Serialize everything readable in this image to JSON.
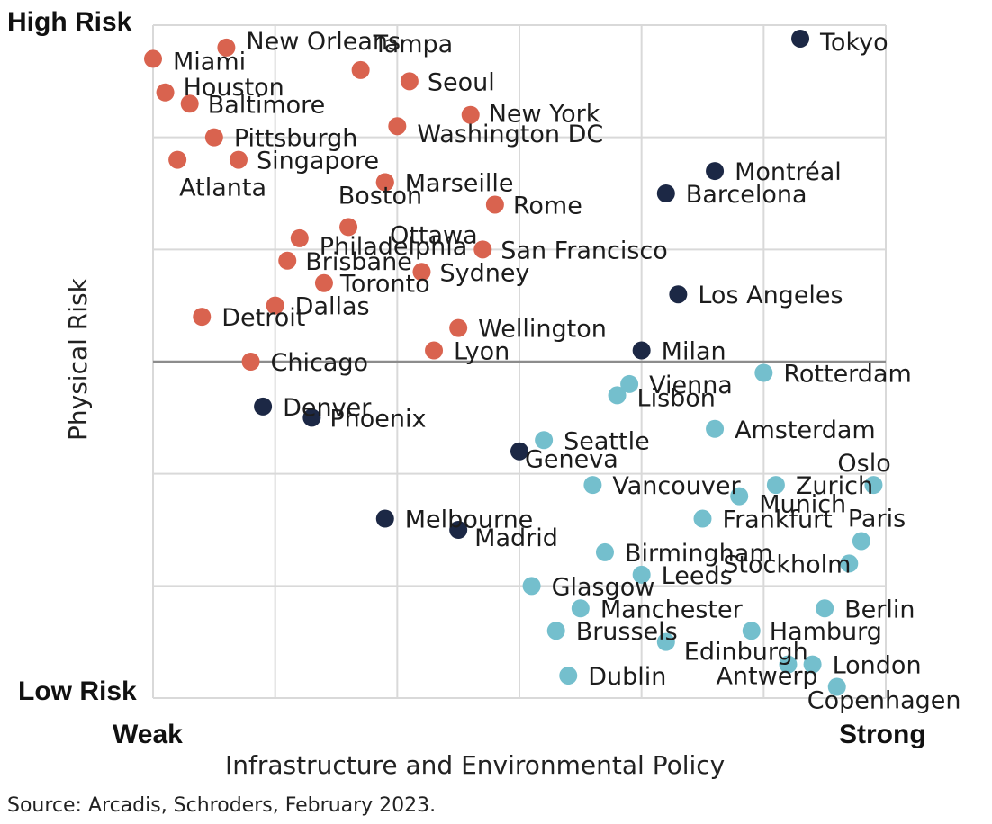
{
  "chart_data": {
    "type": "scatter",
    "xlabel": "Infrastructure and  Environmental Policy",
    "ylabel": "Physical Risk",
    "x_low_label": "Weak",
    "x_high_label": "Strong",
    "y_high_label": "High Risk",
    "y_low_label": "Low Risk",
    "xlim": [
      0,
      6
    ],
    "ylim": [
      0,
      6
    ],
    "grid": true,
    "source": "Source: Arcadis, Schroders, February 2023.",
    "colors": {
      "red": "#d9634f",
      "navy": "#1c2845",
      "teal": "#74bfcd"
    },
    "points": [
      {
        "name": "Tokyo",
        "x": 5.3,
        "y": 5.88,
        "color": "navy"
      },
      {
        "name": "Montréal",
        "x": 4.6,
        "y": 4.7,
        "color": "navy"
      },
      {
        "name": "Barcelona",
        "x": 4.2,
        "y": 4.5,
        "color": "navy"
      },
      {
        "name": "Los Angeles",
        "x": 4.3,
        "y": 3.6,
        "color": "navy"
      },
      {
        "name": "Milan",
        "x": 4.0,
        "y": 3.1,
        "color": "navy"
      },
      {
        "name": "Denver",
        "x": 0.9,
        "y": 2.6,
        "color": "navy"
      },
      {
        "name": "Phoenix",
        "x": 1.3,
        "y": 2.5,
        "color": "navy"
      },
      {
        "name": "Geneva",
        "x": 3.0,
        "y": 2.2,
        "color": "navy"
      },
      {
        "name": "Melbourne",
        "x": 1.9,
        "y": 1.6,
        "color": "navy"
      },
      {
        "name": "Madrid",
        "x": 2.5,
        "y": 1.5,
        "color": "navy"
      },
      {
        "name": "Miami",
        "x": 0.0,
        "y": 5.7,
        "color": "red"
      },
      {
        "name": "New Orleans",
        "x": 0.6,
        "y": 5.8,
        "color": "red"
      },
      {
        "name": "Tampa",
        "x": 1.7,
        "y": 5.6,
        "color": "red"
      },
      {
        "name": "Houston",
        "x": 0.1,
        "y": 5.4,
        "color": "red"
      },
      {
        "name": "Seoul",
        "x": 2.1,
        "y": 5.5,
        "color": "red"
      },
      {
        "name": "Baltimore",
        "x": 0.3,
        "y": 5.3,
        "color": "red"
      },
      {
        "name": "New York",
        "x": 2.6,
        "y": 5.2,
        "color": "red"
      },
      {
        "name": "Washington DC",
        "x": 2.0,
        "y": 5.1,
        "color": "red"
      },
      {
        "name": "Pittsburgh",
        "x": 0.5,
        "y": 5.0,
        "color": "red"
      },
      {
        "name": "Singapore",
        "x": 0.7,
        "y": 4.8,
        "color": "red"
      },
      {
        "name": "Atlanta",
        "x": 0.2,
        "y": 4.8,
        "color": "red"
      },
      {
        "name": "Marseille",
        "x": 1.9,
        "y": 4.6,
        "color": "red"
      },
      {
        "name": "Boston",
        "x": 1.9,
        "y": 4.6,
        "color": "red"
      },
      {
        "name": "Rome",
        "x": 2.8,
        "y": 4.4,
        "color": "red"
      },
      {
        "name": "Ottawa",
        "x": 1.6,
        "y": 4.2,
        "color": "red"
      },
      {
        "name": "Philadelphia",
        "x": 1.2,
        "y": 4.1,
        "color": "red"
      },
      {
        "name": "San Francisco",
        "x": 2.7,
        "y": 4.0,
        "color": "red"
      },
      {
        "name": "Brisbane",
        "x": 1.1,
        "y": 3.9,
        "color": "red"
      },
      {
        "name": "Sydney",
        "x": 2.2,
        "y": 3.8,
        "color": "red"
      },
      {
        "name": "Toronto",
        "x": 1.4,
        "y": 3.7,
        "color": "red"
      },
      {
        "name": "Dallas",
        "x": 1.0,
        "y": 3.5,
        "color": "red"
      },
      {
        "name": "Detroit",
        "x": 0.4,
        "y": 3.4,
        "color": "red"
      },
      {
        "name": "Wellington",
        "x": 2.5,
        "y": 3.3,
        "color": "red"
      },
      {
        "name": "Lyon",
        "x": 2.3,
        "y": 3.1,
        "color": "red"
      },
      {
        "name": "Chicago",
        "x": 0.8,
        "y": 3.0,
        "color": "red"
      },
      {
        "name": "Rotterdam",
        "x": 5.0,
        "y": 2.9,
        "color": "teal"
      },
      {
        "name": "Vienna",
        "x": 3.9,
        "y": 2.8,
        "color": "teal"
      },
      {
        "name": "Lisbon",
        "x": 3.8,
        "y": 2.7,
        "color": "teal"
      },
      {
        "name": "Amsterdam",
        "x": 4.6,
        "y": 2.4,
        "color": "teal"
      },
      {
        "name": "Seattle",
        "x": 3.2,
        "y": 2.3,
        "color": "teal"
      },
      {
        "name": "Oslo",
        "x": 5.9,
        "y": 1.9,
        "color": "teal"
      },
      {
        "name": "Zurich",
        "x": 5.1,
        "y": 1.9,
        "color": "teal"
      },
      {
        "name": "Vancouver",
        "x": 3.6,
        "y": 1.9,
        "color": "teal"
      },
      {
        "name": "Munich",
        "x": 4.8,
        "y": 1.8,
        "color": "teal"
      },
      {
        "name": "Frankfurt",
        "x": 4.5,
        "y": 1.6,
        "color": "teal"
      },
      {
        "name": "Paris",
        "x": 5.8,
        "y": 1.4,
        "color": "teal"
      },
      {
        "name": "Birmingham",
        "x": 3.7,
        "y": 1.3,
        "color": "teal"
      },
      {
        "name": "Stockholm",
        "x": 5.7,
        "y": 1.2,
        "color": "teal"
      },
      {
        "name": "Leeds",
        "x": 4.0,
        "y": 1.1,
        "color": "teal"
      },
      {
        "name": "Glasgow",
        "x": 3.1,
        "y": 1.0,
        "color": "teal"
      },
      {
        "name": "Berlin",
        "x": 5.5,
        "y": 0.8,
        "color": "teal"
      },
      {
        "name": "Manchester",
        "x": 3.5,
        "y": 0.8,
        "color": "teal"
      },
      {
        "name": "Brussels",
        "x": 3.3,
        "y": 0.6,
        "color": "teal"
      },
      {
        "name": "Hamburg",
        "x": 4.9,
        "y": 0.6,
        "color": "teal"
      },
      {
        "name": "Edinburgh",
        "x": 4.2,
        "y": 0.5,
        "color": "teal"
      },
      {
        "name": "Antwerp",
        "x": 5.2,
        "y": 0.3,
        "color": "teal"
      },
      {
        "name": "London",
        "x": 5.4,
        "y": 0.3,
        "color": "teal"
      },
      {
        "name": "Dublin",
        "x": 3.4,
        "y": 0.2,
        "color": "teal"
      },
      {
        "name": "Copenhagen",
        "x": 5.6,
        "y": 0.1,
        "color": "teal"
      }
    ]
  }
}
